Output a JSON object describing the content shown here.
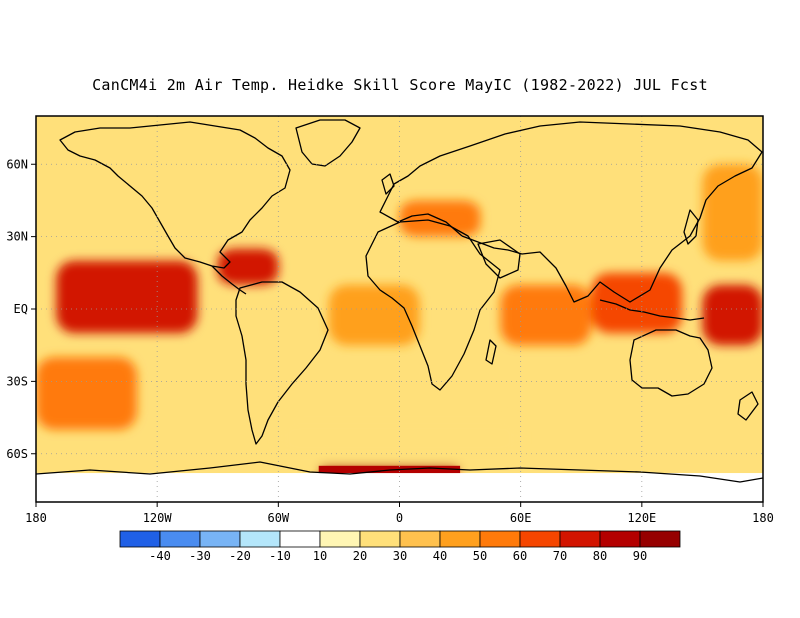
{
  "title": "CanCM4i 2m Air Temp. Heidke Skill Score MayIC (1982-2022) JUL Fcst",
  "chart_data": {
    "type": "heatmap",
    "title": "CanCM4i 2m Air Temp. Heidke Skill Score MayIC (1982-2022) JUL Fcst",
    "x_ticks": [
      "180",
      "120W",
      "60W",
      "0",
      "60E",
      "120E",
      "180"
    ],
    "x_tick_lon": [
      -180,
      -120,
      -60,
      0,
      60,
      120,
      180
    ],
    "y_ticks": [
      "60N",
      "30N",
      "EQ",
      "30S",
      "60S"
    ],
    "y_tick_lat": [
      60,
      30,
      0,
      -30,
      -60
    ],
    "lat_range": [
      -80,
      80
    ],
    "lon_range": [
      -180,
      180
    ],
    "grid": "dotted",
    "colorbar": {
      "labels": [
        "-40",
        "-30",
        "-20",
        "-10",
        "10",
        "20",
        "30",
        "40",
        "50",
        "60",
        "70",
        "80",
        "90"
      ],
      "colors": [
        "#2060e6",
        "#4a8cf0",
        "#78b4f5",
        "#b4e6fa",
        "#ffffff",
        "#fff6b4",
        "#ffe07a",
        "#ffc14e",
        "#ffa01e",
        "#ff7a0a",
        "#f54600",
        "#d21400",
        "#b40000",
        "#960000"
      ]
    },
    "regions": [
      {
        "name": "tropical-east-pacific",
        "lat": [
          -10,
          20
        ],
        "lon": [
          -170,
          -100
        ],
        "value": 70
      },
      {
        "name": "tropical-west-pacific",
        "lat": [
          -15,
          10
        ],
        "lon": [
          150,
          180
        ],
        "value": 70
      },
      {
        "name": "caribbean",
        "lat": [
          10,
          25
        ],
        "lon": [
          -90,
          -60
        ],
        "value": 70
      },
      {
        "name": "maritime-continent",
        "lat": [
          -10,
          15
        ],
        "lon": [
          95,
          140
        ],
        "value": 60
      },
      {
        "name": "tropical-indian-ocean",
        "lat": [
          -15,
          10
        ],
        "lon": [
          50,
          95
        ],
        "value": 50
      },
      {
        "name": "south-pacific",
        "lat": [
          -50,
          -20
        ],
        "lon": [
          -180,
          -130
        ],
        "value": 50
      },
      {
        "name": "tropical-atlantic",
        "lat": [
          -15,
          10
        ],
        "lon": [
          -35,
          10
        ],
        "value": 40
      },
      {
        "name": "north-pacific",
        "lat": [
          20,
          60
        ],
        "lon": [
          150,
          180
        ],
        "value": 40
      },
      {
        "name": "mediterranean",
        "lat": [
          30,
          45
        ],
        "lon": [
          0,
          40
        ],
        "value": 50
      },
      {
        "name": "southern-ocean",
        "lat": [
          -62,
          -45
        ],
        "lon": [
          -60,
          60
        ],
        "value": 20
      },
      {
        "name": "antarctic-strip",
        "lat": [
          -68,
          -65
        ],
        "lon": [
          -40,
          30
        ],
        "value": 80
      }
    ]
  }
}
